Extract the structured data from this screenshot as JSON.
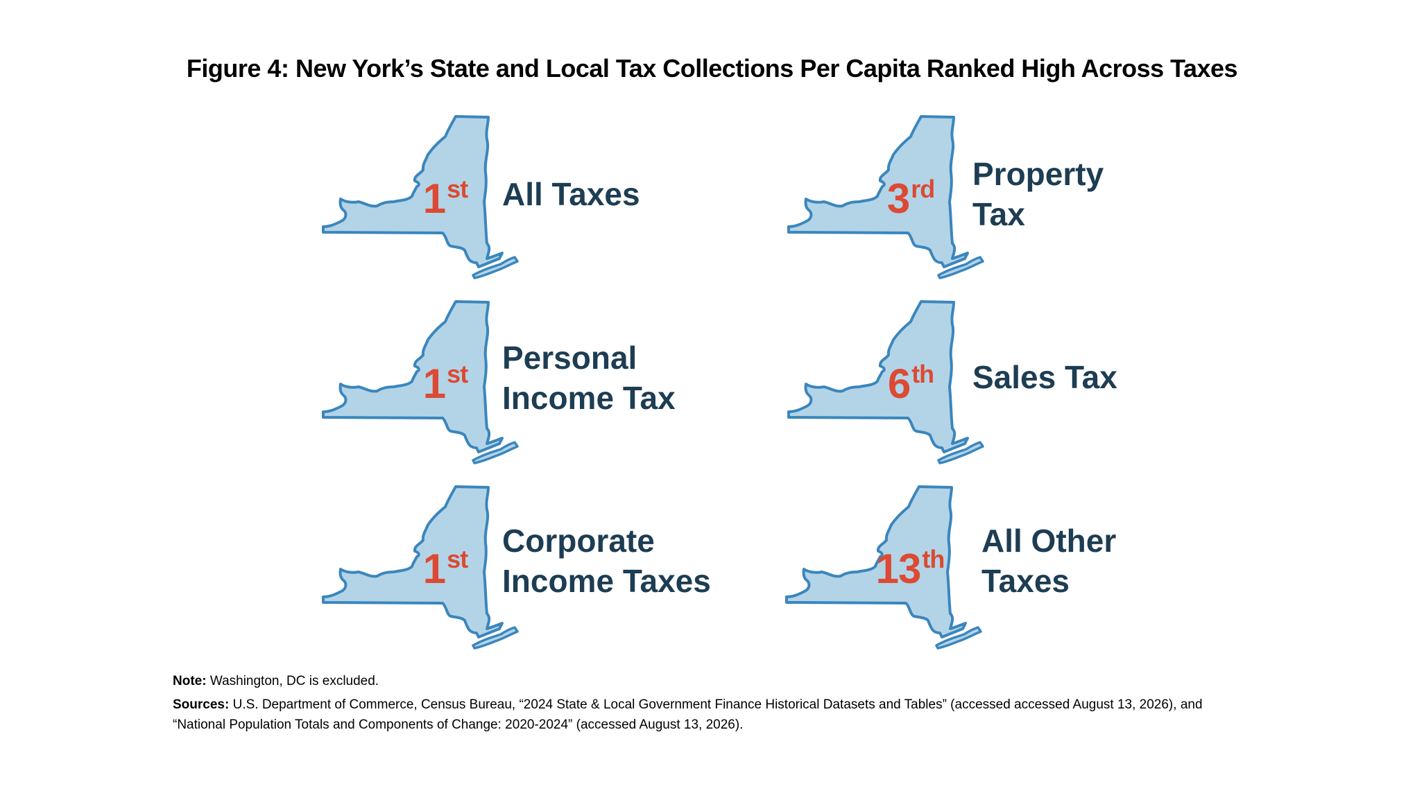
{
  "title": "Figure 4: New York’s State and Local Tax Collections Per Capita Ranked High Across Taxes",
  "colors": {
    "map_fill": "#b3d4e7",
    "map_stroke": "#3b86bd",
    "rank": "#dc4a33",
    "label": "#1d3d53"
  },
  "icon": "new-york-state-outline",
  "tiles": [
    {
      "rank_number": "1",
      "rank_suffix": "st",
      "label_line1": "All Taxes",
      "label_line2": ""
    },
    {
      "rank_number": "3",
      "rank_suffix": "rd",
      "label_line1": "Property",
      "label_line2": "Tax"
    },
    {
      "rank_number": "1",
      "rank_suffix": "st",
      "label_line1": "Personal",
      "label_line2": "Income Tax"
    },
    {
      "rank_number": "6",
      "rank_suffix": "th",
      "label_line1": "Sales Tax",
      "label_line2": ""
    },
    {
      "rank_number": "1",
      "rank_suffix": "st",
      "label_line1": "Corporate",
      "label_line2": "Income Taxes"
    },
    {
      "rank_number": "13",
      "rank_suffix": "th",
      "label_line1": "All Other",
      "label_line2": "Taxes"
    }
  ],
  "note": {
    "label": "Note:",
    "text": "Washington, DC is excluded."
  },
  "sources": {
    "label": "Sources:",
    "text": "U.S. Department of Commerce, Census Bureau, “2024 State & Local Government Finance Historical Datasets and Tables” (accessed accessed August 13, 2026), and",
    "text_line2": "“National Population Totals and Components of Change: 2020-2024” (accessed August 13, 2026)."
  }
}
